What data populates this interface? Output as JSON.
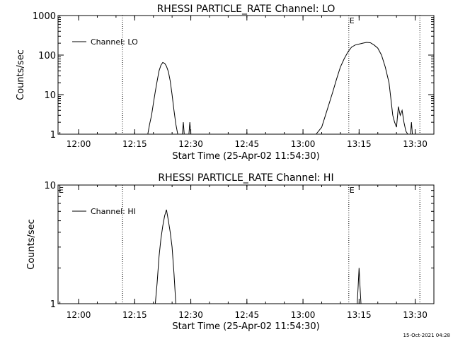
{
  "footer_timestamp": "15-Oct-2021 04:28",
  "chart_data": [
    {
      "type": "line",
      "title": "RHESSI PARTICLE_RATE Channel: LO",
      "xlabel": "Start Time (25-Apr-02 11:54:30)",
      "ylabel": "Counts/sec",
      "y_scale": "log",
      "ylim": [
        1,
        1000
      ],
      "xlim": [
        "11:54:30",
        "13:35:00"
      ],
      "grid": false,
      "legend_position": "top-left",
      "x_ticks": [
        "12:00",
        "12:15",
        "12:30",
        "12:45",
        "13:00",
        "13:15",
        "13:30"
      ],
      "y_ticks": [
        "1",
        "10",
        "100",
        "1000"
      ],
      "markers": [
        {
          "label": "",
          "time": "12:11:45"
        },
        {
          "label": "E",
          "time": "13:12:15"
        },
        {
          "label": "",
          "time": "13:31:15"
        }
      ],
      "series": [
        {
          "name": "Channel: LO",
          "segments": [
            {
              "x": [
                "12:18:30",
                "12:19:00",
                "12:19:30",
                "12:20:00",
                "12:20:30",
                "12:21:00",
                "12:21:30",
                "12:22:00",
                "12:22:30",
                "12:23:00",
                "12:23:30",
                "12:24:00",
                "12:24:30",
                "12:25:00",
                "12:25:30",
                "12:26:00",
                "12:26:30",
                "12:27:00",
                "12:27:30"
              ],
              "y": [
                1,
                1.8,
                3,
                6,
                12,
                22,
                40,
                55,
                65,
                62,
                52,
                38,
                22,
                10,
                4,
                1.8,
                1,
                1,
                1
              ]
            },
            {
              "x": [
                "12:27:45",
                "12:28:00",
                "12:28:15"
              ],
              "y": [
                1,
                2,
                1
              ]
            },
            {
              "x": [
                "12:29:30",
                "12:29:45",
                "12:30:00"
              ],
              "y": [
                1,
                2,
                1
              ]
            },
            {
              "x": [
                "13:03:30",
                "13:05:00",
                "13:06:00",
                "13:07:00",
                "13:08:00",
                "13:09:00",
                "13:10:00",
                "13:11:00",
                "13:12:00",
                "13:13:00",
                "13:14:00",
                "13:15:00",
                "13:16:00",
                "13:17:00",
                "13:18:00",
                "13:19:00",
                "13:20:00",
                "13:21:00",
                "13:22:00",
                "13:23:00",
                "13:23:30",
                "13:24:00"
              ],
              "y": [
                1,
                1.5,
                3,
                6,
                12,
                25,
                50,
                80,
                120,
                160,
                180,
                190,
                200,
                210,
                205,
                180,
                150,
                100,
                50,
                20,
                8,
                3
              ]
            },
            {
              "x": [
                "13:24:00",
                "13:24:30",
                "13:25:00",
                "13:25:30",
                "13:26:00",
                "13:26:30",
                "13:27:00",
                "13:27:30",
                "13:28:00"
              ],
              "y": [
                3,
                2,
                1.5,
                5,
                3,
                4,
                2,
                1.2,
                1
              ]
            },
            {
              "x": [
                "13:28:45",
                "13:29:00",
                "13:29:15"
              ],
              "y": [
                1,
                2,
                1
              ]
            }
          ]
        }
      ]
    },
    {
      "type": "line",
      "title": "RHESSI PARTICLE_RATE Channel: HI",
      "xlabel": "Start Time (25-Apr-02 11:54:30)",
      "ylabel": "Counts/sec",
      "y_scale": "log",
      "ylim": [
        1,
        10
      ],
      "xlim": [
        "11:54:30",
        "13:35:00"
      ],
      "grid": false,
      "legend_position": "top-left",
      "x_ticks": [
        "12:00",
        "12:15",
        "12:30",
        "12:45",
        "13:00",
        "13:15",
        "13:30"
      ],
      "y_ticks": [
        "1",
        "10"
      ],
      "markers": [
        {
          "label": "E",
          "time": "11:54:30"
        },
        {
          "label": "",
          "time": "12:11:45"
        },
        {
          "label": "E",
          "time": "13:12:15"
        },
        {
          "label": "",
          "time": "13:31:15"
        }
      ],
      "series": [
        {
          "name": "Channel: HI",
          "segments": [
            {
              "x": [
                "12:20:30",
                "12:21:00",
                "12:21:30",
                "12:22:00",
                "12:22:30",
                "12:23:00",
                "12:23:30",
                "12:24:00",
                "12:24:30",
                "12:25:00",
                "12:25:30",
                "12:26:00"
              ],
              "y": [
                1,
                1.5,
                2.5,
                3.5,
                4.5,
                5.5,
                6.2,
                5,
                4,
                3,
                1.8,
                1
              ]
            },
            {
              "x": [
                "13:14:30",
                "13:14:45",
                "13:15:00",
                "13:15:15",
                "13:15:30"
              ],
              "y": [
                1,
                1.4,
                2,
                1.4,
                1
              ]
            }
          ]
        }
      ]
    }
  ]
}
